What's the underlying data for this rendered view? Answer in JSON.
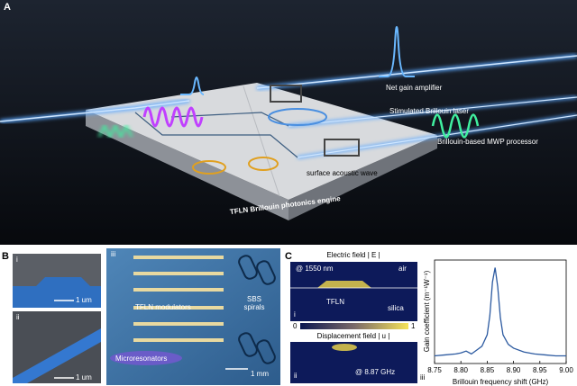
{
  "figure": {
    "panel_a": {
      "label": "A",
      "labels": [
        "Net gain amplifier",
        "Stimulated Brillouin laser",
        "Brillouin-based MWP processor",
        "surface acoustic wave",
        "TFLN Brillouin photonics engine"
      ]
    },
    "panel_b": {
      "label": "B",
      "sem": [
        {
          "label": "i",
          "scale": "1 um"
        },
        {
          "label": "ii",
          "scale": "1 um"
        }
      ],
      "micrograph": {
        "label": "iii",
        "labels": [
          "TFLN modulators",
          "SBS spirals",
          "Microresonators"
        ],
        "scale": "1 mm"
      }
    },
    "panel_c": {
      "label": "C",
      "electric": {
        "title": "Electric field | E |",
        "wavelength": "@ 1550 nm",
        "labels": [
          "air",
          "TFLN",
          "silica"
        ],
        "label": "i"
      },
      "colorbar": [
        0,
        1
      ],
      "displacement": {
        "title": "Displacement field | u |",
        "frequency": "@ 8.87 GHz",
        "label": "ii"
      }
    }
  },
  "chart_data": {
    "type": "line",
    "panel_label": "iii",
    "x_label": "Brillouin frequency shift (GHz)",
    "y_label": "Gain coefficient (m⁻¹W⁻¹)",
    "x": [
      8.75,
      8.77,
      8.79,
      8.8,
      8.81,
      8.82,
      8.83,
      8.84,
      8.85,
      8.855,
      8.86,
      8.865,
      8.87,
      8.875,
      8.88,
      8.89,
      8.9,
      8.92,
      8.94,
      8.96,
      8.98,
      9.0
    ],
    "values": [
      0.08,
      0.09,
      0.1,
      0.11,
      0.13,
      0.1,
      0.14,
      0.18,
      0.3,
      0.5,
      0.85,
      1.0,
      0.8,
      0.48,
      0.3,
      0.2,
      0.16,
      0.12,
      0.1,
      0.09,
      0.08,
      0.08
    ],
    "color": "#2c5aa0",
    "xlim": [
      8.75,
      9.0
    ],
    "ylim": [
      0,
      1.08
    ],
    "xticks": [
      8.75,
      {
        "value": 8.8,
        "label": "8.80"
      },
      8.85,
      {
        "value": 8.9,
        "label": "8.90"
      },
      8.95,
      {
        "value": 9.0,
        "label": "9.00"
      }
    ]
  }
}
